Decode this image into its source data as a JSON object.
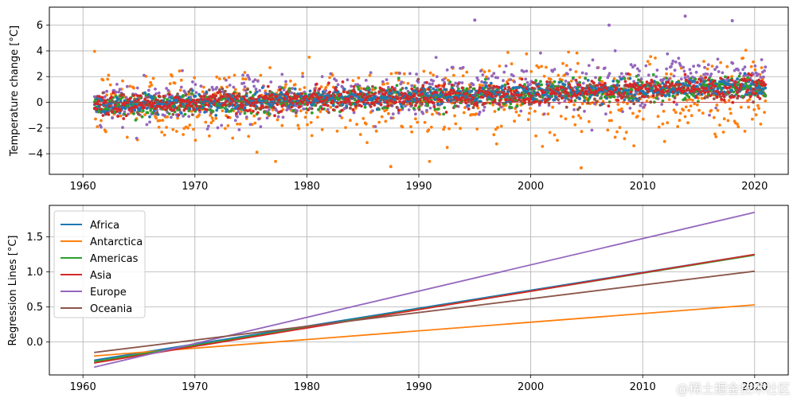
{
  "watermark": "@稀土掘金技术社区",
  "chart_data": [
    {
      "type": "scatter",
      "xlabel": "",
      "ylabel": "Temperature change [°C]",
      "xlim": [
        1957.0,
        2023.0
      ],
      "ylim": [
        -5.6,
        7.4
      ],
      "xticks": [
        "1960",
        "1970",
        "1980",
        "1990",
        "2000",
        "2010",
        "2020"
      ],
      "yticks": [
        "−4",
        "−2",
        "0",
        "2",
        "4",
        "6"
      ],
      "grid": true,
      "x_range": [
        1961,
        2020
      ],
      "points_per_year": 12,
      "series": [
        {
          "name": "Africa",
          "color": "#1f77b4",
          "trend_start": -0.25,
          "trend_end": 1.25,
          "spread": 0.35
        },
        {
          "name": "Antarctica",
          "color": "#ff7f0e",
          "trend_start": -0.2,
          "trend_end": 0.53,
          "spread": 1.5
        },
        {
          "name": "Americas",
          "color": "#2ca02c",
          "trend_start": -0.28,
          "trend_end": 1.25,
          "spread": 0.45
        },
        {
          "name": "Asia",
          "color": "#d62728",
          "trend_start": -0.28,
          "trend_end": 1.25,
          "spread": 0.45
        },
        {
          "name": "Europe",
          "color": "#9467bd",
          "trend_start": -0.35,
          "trend_end": 1.85,
          "spread": 0.9
        },
        {
          "name": "Oceania",
          "color": "#8c564b",
          "trend_start": -0.15,
          "trend_end": 1.0,
          "spread": 0.4
        }
      ],
      "notable_points": [
        {
          "x": 1995.0,
          "y": 6.4
        },
        {
          "x": 2007.0,
          "y": 6.0
        },
        {
          "x": 2013.8,
          "y": 6.7
        },
        {
          "x": 2018.0,
          "y": 6.35
        },
        {
          "x": 1987.5,
          "y": -5.0
        },
        {
          "x": 2004.5,
          "y": -5.1
        }
      ]
    },
    {
      "type": "line",
      "xlabel": "",
      "ylabel": "Regression Lines [°C]",
      "xlim": [
        1957.0,
        2023.0
      ],
      "ylim": [
        -0.47,
        1.95
      ],
      "xticks": [
        "1960",
        "1970",
        "1980",
        "1990",
        "2000",
        "2010",
        "2020"
      ],
      "yticks": [
        "0.0",
        "0.5",
        "1.0",
        "1.5"
      ],
      "grid": true,
      "legend_position": "upper-left",
      "x": [
        1961,
        2020
      ],
      "series": [
        {
          "name": "Africa",
          "color": "#1f77b4",
          "values": [
            -0.26,
            1.25
          ]
        },
        {
          "name": "Antarctica",
          "color": "#ff7f0e",
          "values": [
            -0.2,
            0.53
          ]
        },
        {
          "name": "Americas",
          "color": "#2ca02c",
          "values": [
            -0.28,
            1.24
          ]
        },
        {
          "name": "Asia",
          "color": "#d62728",
          "values": [
            -0.3,
            1.25
          ]
        },
        {
          "name": "Europe",
          "color": "#9467bd",
          "values": [
            -0.36,
            1.85
          ]
        },
        {
          "name": "Oceania",
          "color": "#8c564b",
          "values": [
            -0.15,
            1.01
          ]
        }
      ]
    }
  ]
}
